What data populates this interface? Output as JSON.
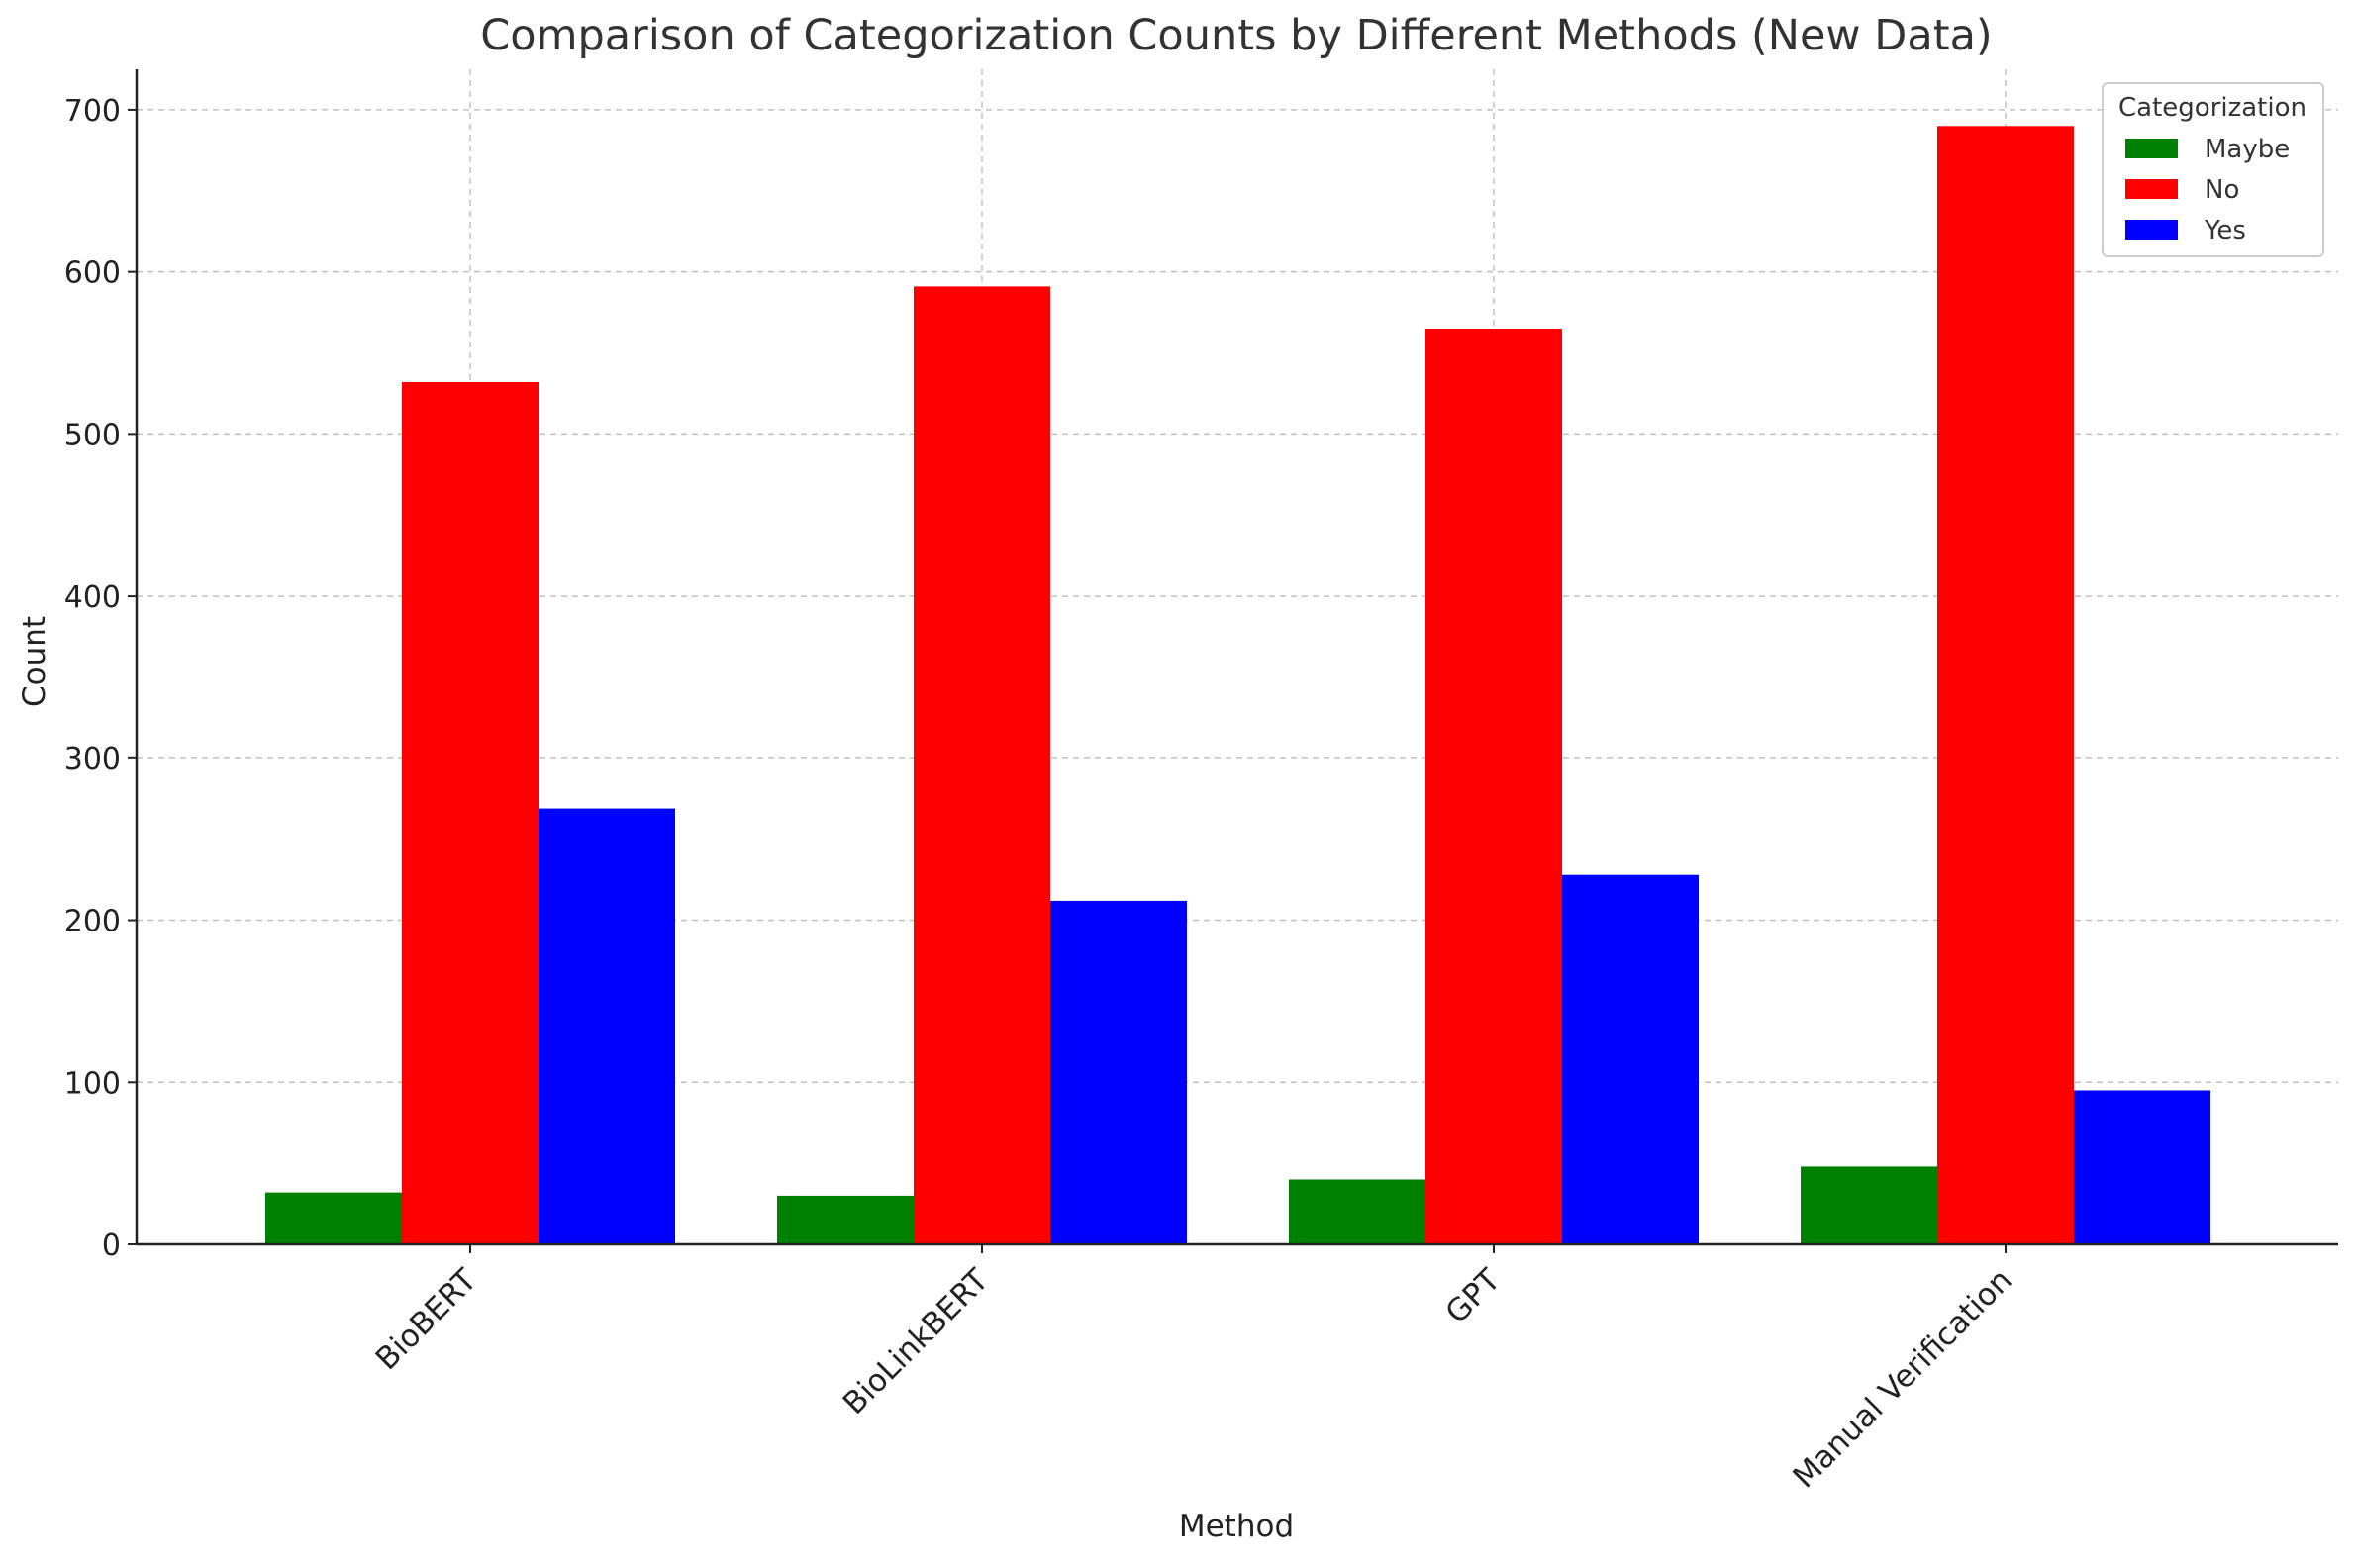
{
  "chart_data": {
    "type": "bar",
    "title": "Comparison of Categorization Counts by Different Methods (New Data)",
    "xlabel": "Method",
    "ylabel": "Count",
    "categories": [
      "BioBERT",
      "BioLinkBERT",
      "GPT",
      "Manual Verification"
    ],
    "series": [
      {
        "name": "Maybe",
        "color": "#008000",
        "values": [
          32,
          30,
          40,
          48
        ]
      },
      {
        "name": "No",
        "color": "#ff0000",
        "values": [
          532,
          591,
          565,
          690
        ]
      },
      {
        "name": "Yes",
        "color": "#0000ff",
        "values": [
          269,
          212,
          228,
          95
        ]
      }
    ],
    "ylim": [
      0,
      725
    ],
    "yticks": [
      0,
      100,
      200,
      300,
      400,
      500,
      600,
      700
    ],
    "grid": true,
    "legend": {
      "title": "Categorization",
      "placement": "top-right"
    }
  }
}
